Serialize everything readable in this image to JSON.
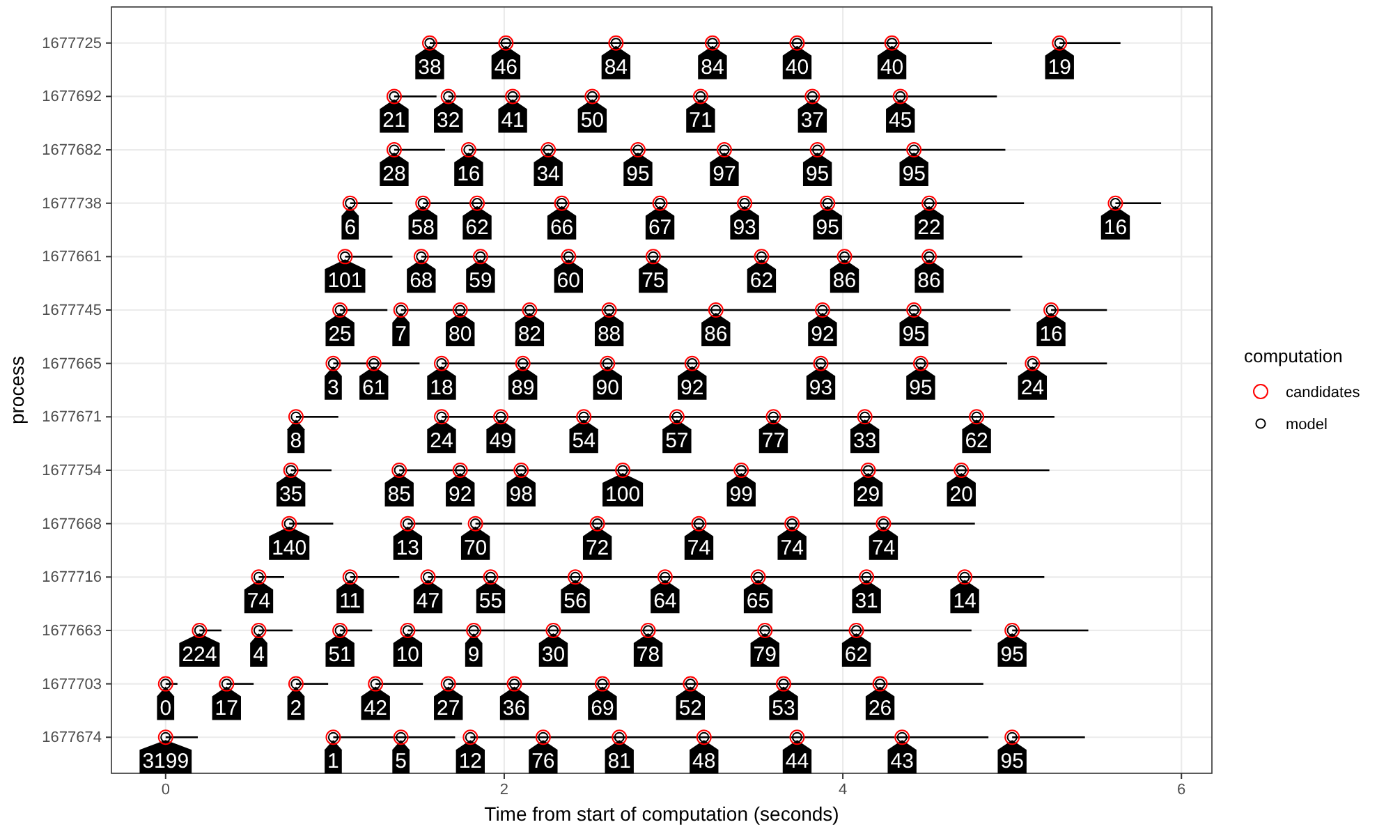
{
  "chart_data": {
    "type": "bar",
    "orientation": "horizontal",
    "xlabel": "Time from start of computation (seconds)",
    "ylabel": "process",
    "legend_title": "computation",
    "legend": "right",
    "grid": true,
    "categories": [
      "1677725",
      "1677692",
      "1677682",
      "1677738",
      "1677661",
      "1677745",
      "1677665",
      "1677671",
      "1677754",
      "1677668",
      "1677716",
      "1677663",
      "1677703",
      "1677674"
    ],
    "xlim": [
      -0.32,
      6.18
    ],
    "xticks": [
      0,
      2,
      4,
      6
    ],
    "series": [
      {
        "color": "#000000",
        "base": [
          1.56,
          1.35,
          1.35,
          1.09,
          1.06,
          1.03,
          0.99,
          0.77,
          0.74,
          0.73,
          0.55,
          0.2,
          0,
          0
        ],
        "values": [
          3.32,
          0.25,
          0.3,
          0.25,
          0.28,
          0.28,
          0.51,
          0.25,
          0.24,
          0.26,
          0.15,
          0.13,
          0.07,
          0.19
        ]
      },
      {
        "color": "#000000",
        "base": [
          5.28,
          1.67,
          1.79,
          1.52,
          1.51,
          1.39,
          1.63,
          1.63,
          1.38,
          1.43,
          1.09,
          0.55,
          0.36,
          0.99
        ],
        "values": [
          0.36,
          3.24,
          3.17,
          3.55,
          3.55,
          3.6,
          3.34,
          3.62,
          3.84,
          0.32,
          0.29,
          0.2,
          0.16,
          0.72
        ]
      },
      {
        "color": "#000000",
        "base": [
          null,
          null,
          null,
          5.61,
          null,
          5.23,
          5.12,
          null,
          null,
          1.83,
          1.55,
          1.03,
          0.77,
          1.8
        ],
        "values": [
          null,
          null,
          null,
          0.27,
          null,
          0.33,
          0.44,
          null,
          null,
          2.95,
          3.64,
          0.19,
          0.19,
          3.06
        ]
      },
      {
        "color": "#000000",
        "base": [
          null,
          null,
          null,
          null,
          null,
          null,
          null,
          null,
          null,
          null,
          null,
          1.43,
          1.24,
          5.0
        ],
        "values": [
          null,
          null,
          null,
          null,
          null,
          null,
          null,
          null,
          null,
          null,
          null,
          3.33,
          0.28,
          0.43
        ]
      },
      {
        "color": "#000000",
        "base": [
          null,
          null,
          null,
          null,
          null,
          null,
          null,
          null,
          null,
          null,
          null,
          5.0,
          1.67,
          null
        ],
        "values": [
          null,
          null,
          null,
          null,
          null,
          null,
          null,
          null,
          null,
          null,
          null,
          0.45,
          3.16,
          null
        ]
      },
      {
        "name": "candidates",
        "type": "scatter",
        "color": "#ff0000",
        "marker": "circle",
        "values": [
          1.56,
          2.01,
          2.66,
          3.23,
          3.73,
          4.29,
          5.28,
          1.35,
          1.67,
          2.05,
          2.52,
          3.16,
          3.82,
          4.34,
          1.35,
          1.79,
          2.26,
          2.79,
          3.3,
          3.85,
          4.42,
          1.09,
          1.52,
          1.84,
          2.34,
          2.92,
          3.42,
          3.91,
          4.51,
          5.61,
          1.06,
          1.51,
          1.86,
          2.38,
          2.88,
          3.52,
          4.01,
          4.51,
          1.03,
          1.39,
          1.74,
          2.15,
          2.62,
          3.25,
          3.88,
          4.42,
          5.23,
          0.99,
          1.23,
          1.63,
          2.11,
          2.61,
          3.11,
          3.87,
          4.46,
          5.12,
          0.77,
          1.63,
          1.98,
          2.47,
          3.02,
          3.59,
          4.13,
          4.79,
          0.74,
          1.38,
          1.74,
          2.1,
          2.7,
          3.4,
          4.15,
          4.7,
          0.73,
          1.43,
          1.83,
          2.55,
          3.15,
          3.7,
          4.24,
          0.55,
          1.09,
          1.55,
          1.92,
          2.42,
          2.95,
          3.5,
          4.14,
          4.72,
          0.2,
          0.55,
          1.03,
          1.43,
          1.82,
          2.29,
          2.85,
          3.54,
          4.08,
          5.0,
          0,
          0.36,
          0.77,
          1.24,
          1.67,
          2.06,
          2.58,
          3.1,
          3.65,
          4.22,
          0,
          0.99,
          1.39,
          1.8,
          2.23,
          2.68,
          3.18,
          3.73,
          4.35,
          5.0
        ],
        "x": [
          "1677725",
          "1677725",
          "1677725",
          "1677725",
          "1677725",
          "1677725",
          "1677725",
          "1677692",
          "1677692",
          "1677692",
          "1677692",
          "1677692",
          "1677692",
          "1677692",
          "1677682",
          "1677682",
          "1677682",
          "1677682",
          "1677682",
          "1677682",
          "1677682",
          "1677738",
          "1677738",
          "1677738",
          "1677738",
          "1677738",
          "1677738",
          "1677738",
          "1677738",
          "1677738",
          "1677661",
          "1677661",
          "1677661",
          "1677661",
          "1677661",
          "1677661",
          "1677661",
          "1677661",
          "1677745",
          "1677745",
          "1677745",
          "1677745",
          "1677745",
          "1677745",
          "1677745",
          "1677745",
          "1677745",
          "1677665",
          "1677665",
          "1677665",
          "1677665",
          "1677665",
          "1677665",
          "1677665",
          "1677665",
          "1677665",
          "1677671",
          "1677671",
          "1677671",
          "1677671",
          "1677671",
          "1677671",
          "1677671",
          "1677671",
          "1677754",
          "1677754",
          "1677754",
          "1677754",
          "1677754",
          "1677754",
          "1677754",
          "1677754",
          "1677668",
          "1677668",
          "1677668",
          "1677668",
          "1677668",
          "1677668",
          "1677668",
          "1677716",
          "1677716",
          "1677716",
          "1677716",
          "1677716",
          "1677716",
          "1677716",
          "1677716",
          "1677716",
          "1677663",
          "1677663",
          "1677663",
          "1677663",
          "1677663",
          "1677663",
          "1677663",
          "1677663",
          "1677663",
          "1677663",
          "1677703",
          "1677703",
          "1677703",
          "1677703",
          "1677703",
          "1677703",
          "1677703",
          "1677703",
          "1677703",
          "1677703",
          "1677674",
          "1677674",
          "1677674",
          "1677674",
          "1677674",
          "1677674",
          "1677674",
          "1677674",
          "1677674",
          "1677674"
        ]
      },
      {
        "name": "model",
        "type": "scatter",
        "color": "#000000",
        "marker": "circle",
        "values": [
          1.56,
          2.01,
          2.66,
          3.23,
          3.73,
          4.29,
          5.28,
          1.35,
          1.67,
          2.05,
          2.52,
          3.16,
          3.82,
          4.34,
          1.35,
          1.79,
          2.26,
          2.79,
          3.3,
          3.85,
          4.42,
          1.09,
          1.52,
          1.84,
          2.34,
          2.92,
          3.42,
          3.91,
          4.51,
          5.61,
          1.06,
          1.51,
          1.86,
          2.38,
          2.88,
          3.52,
          4.01,
          4.51,
          1.03,
          1.39,
          1.74,
          2.15,
          2.62,
          3.25,
          3.88,
          4.42,
          5.23,
          0.99,
          1.23,
          1.63,
          2.11,
          2.61,
          3.11,
          3.87,
          4.46,
          5.12,
          0.77,
          1.63,
          1.98,
          2.47,
          3.02,
          3.59,
          4.13,
          4.79,
          0.74,
          1.38,
          1.74,
          2.1,
          2.7,
          3.4,
          4.15,
          4.7,
          0.73,
          1.43,
          1.83,
          2.55,
          3.15,
          3.7,
          4.24,
          0.55,
          1.09,
          1.55,
          1.92,
          2.42,
          2.95,
          3.5,
          4.14,
          4.72,
          0.2,
          0.55,
          1.03,
          1.43,
          1.82,
          2.29,
          2.85,
          3.54,
          4.08,
          5.0,
          0,
          0.36,
          0.77,
          1.24,
          1.67,
          2.06,
          2.58,
          3.1,
          3.65,
          4.22,
          0,
          0.99,
          1.39,
          1.8,
          2.23,
          2.68,
          3.18,
          3.73,
          4.35,
          5.0
        ],
        "x": [
          "1677725",
          "1677725",
          "1677725",
          "1677725",
          "1677725",
          "1677725",
          "1677725",
          "1677692",
          "1677692",
          "1677692",
          "1677692",
          "1677692",
          "1677692",
          "1677692",
          "1677682",
          "1677682",
          "1677682",
          "1677682",
          "1677682",
          "1677682",
          "1677682",
          "1677738",
          "1677738",
          "1677738",
          "1677738",
          "1677738",
          "1677738",
          "1677738",
          "1677738",
          "1677738",
          "1677661",
          "1677661",
          "1677661",
          "1677661",
          "1677661",
          "1677661",
          "1677661",
          "1677661",
          "1677745",
          "1677745",
          "1677745",
          "1677745",
          "1677745",
          "1677745",
          "1677745",
          "1677745",
          "1677745",
          "1677665",
          "1677665",
          "1677665",
          "1677665",
          "1677665",
          "1677665",
          "1677665",
          "1677665",
          "1677665",
          "1677671",
          "1677671",
          "1677671",
          "1677671",
          "1677671",
          "1677671",
          "1677671",
          "1677671",
          "1677754",
          "1677754",
          "1677754",
          "1677754",
          "1677754",
          "1677754",
          "1677754",
          "1677754",
          "1677668",
          "1677668",
          "1677668",
          "1677668",
          "1677668",
          "1677668",
          "1677668",
          "1677716",
          "1677716",
          "1677716",
          "1677716",
          "1677716",
          "1677716",
          "1677716",
          "1677716",
          "1677716",
          "1677663",
          "1677663",
          "1677663",
          "1677663",
          "1677663",
          "1677663",
          "1677663",
          "1677663",
          "1677663",
          "1677663",
          "1677703",
          "1677703",
          "1677703",
          "1677703",
          "1677703",
          "1677703",
          "1677703",
          "1677703",
          "1677703",
          "1677703",
          "1677674",
          "1677674",
          "1677674",
          "1677674",
          "1677674",
          "1677674",
          "1677674",
          "1677674",
          "1677674",
          "1677674"
        ]
      }
    ],
    "annotations": [
      {
        "text": "38",
        "x": 1.56,
        "y": "1677725"
      },
      {
        "text": "46",
        "x": 2.01,
        "y": "1677725"
      },
      {
        "text": "84",
        "x": 2.66,
        "y": "1677725"
      },
      {
        "text": "84",
        "x": 3.23,
        "y": "1677725"
      },
      {
        "text": "40",
        "x": 3.73,
        "y": "1677725"
      },
      {
        "text": "40",
        "x": 4.29,
        "y": "1677725"
      },
      {
        "text": "19",
        "x": 5.28,
        "y": "1677725"
      },
      {
        "text": "21",
        "x": 1.35,
        "y": "1677692"
      },
      {
        "text": "32",
        "x": 1.67,
        "y": "1677692"
      },
      {
        "text": "41",
        "x": 2.05,
        "y": "1677692"
      },
      {
        "text": "50",
        "x": 2.52,
        "y": "1677692"
      },
      {
        "text": "71",
        "x": 3.16,
        "y": "1677692"
      },
      {
        "text": "37",
        "x": 3.82,
        "y": "1677692"
      },
      {
        "text": "45",
        "x": 4.34,
        "y": "1677692"
      },
      {
        "text": "28",
        "x": 1.35,
        "y": "1677682"
      },
      {
        "text": "16",
        "x": 1.79,
        "y": "1677682"
      },
      {
        "text": "34",
        "x": 2.26,
        "y": "1677682"
      },
      {
        "text": "95",
        "x": 2.79,
        "y": "1677682"
      },
      {
        "text": "97",
        "x": 3.3,
        "y": "1677682"
      },
      {
        "text": "95",
        "x": 3.85,
        "y": "1677682"
      },
      {
        "text": "95",
        "x": 4.42,
        "y": "1677682"
      },
      {
        "text": "6",
        "x": 1.09,
        "y": "1677738"
      },
      {
        "text": "58",
        "x": 1.52,
        "y": "1677738"
      },
      {
        "text": "62",
        "x": 1.84,
        "y": "1677738"
      },
      {
        "text": "66",
        "x": 2.34,
        "y": "1677738"
      },
      {
        "text": "67",
        "x": 2.92,
        "y": "1677738"
      },
      {
        "text": "93",
        "x": 3.42,
        "y": "1677738"
      },
      {
        "text": "95",
        "x": 3.91,
        "y": "1677738"
      },
      {
        "text": "22",
        "x": 4.51,
        "y": "1677738"
      },
      {
        "text": "16",
        "x": 5.61,
        "y": "1677738"
      },
      {
        "text": "101",
        "x": 1.06,
        "y": "1677661"
      },
      {
        "text": "68",
        "x": 1.51,
        "y": "1677661"
      },
      {
        "text": "59",
        "x": 1.86,
        "y": "1677661"
      },
      {
        "text": "60",
        "x": 2.38,
        "y": "1677661"
      },
      {
        "text": "75",
        "x": 2.88,
        "y": "1677661"
      },
      {
        "text": "62",
        "x": 3.52,
        "y": "1677661"
      },
      {
        "text": "86",
        "x": 4.01,
        "y": "1677661"
      },
      {
        "text": "86",
        "x": 4.51,
        "y": "1677661"
      },
      {
        "text": "25",
        "x": 1.03,
        "y": "1677745"
      },
      {
        "text": "7",
        "x": 1.39,
        "y": "1677745"
      },
      {
        "text": "80",
        "x": 1.74,
        "y": "1677745"
      },
      {
        "text": "82",
        "x": 2.15,
        "y": "1677745"
      },
      {
        "text": "88",
        "x": 2.62,
        "y": "1677745"
      },
      {
        "text": "86",
        "x": 3.25,
        "y": "1677745"
      },
      {
        "text": "92",
        "x": 3.88,
        "y": "1677745"
      },
      {
        "text": "95",
        "x": 4.42,
        "y": "1677745"
      },
      {
        "text": "16",
        "x": 5.23,
        "y": "1677745"
      },
      {
        "text": "3",
        "x": 0.99,
        "y": "1677665"
      },
      {
        "text": "61",
        "x": 1.23,
        "y": "1677665"
      },
      {
        "text": "18",
        "x": 1.63,
        "y": "1677665"
      },
      {
        "text": "89",
        "x": 2.11,
        "y": "1677665"
      },
      {
        "text": "90",
        "x": 2.61,
        "y": "1677665"
      },
      {
        "text": "92",
        "x": 3.11,
        "y": "1677665"
      },
      {
        "text": "93",
        "x": 3.87,
        "y": "1677665"
      },
      {
        "text": "95",
        "x": 4.46,
        "y": "1677665"
      },
      {
        "text": "24",
        "x": 5.12,
        "y": "1677665"
      },
      {
        "text": "8",
        "x": 0.77,
        "y": "1677671"
      },
      {
        "text": "24",
        "x": 1.63,
        "y": "1677671"
      },
      {
        "text": "49",
        "x": 1.98,
        "y": "1677671"
      },
      {
        "text": "54",
        "x": 2.47,
        "y": "1677671"
      },
      {
        "text": "57",
        "x": 3.02,
        "y": "1677671"
      },
      {
        "text": "77",
        "x": 3.59,
        "y": "1677671"
      },
      {
        "text": "33",
        "x": 4.13,
        "y": "1677671"
      },
      {
        "text": "62",
        "x": 4.79,
        "y": "1677671"
      },
      {
        "text": "35",
        "x": 0.74,
        "y": "1677754"
      },
      {
        "text": "85",
        "x": 1.38,
        "y": "1677754"
      },
      {
        "text": "92",
        "x": 1.74,
        "y": "1677754"
      },
      {
        "text": "98",
        "x": 2.1,
        "y": "1677754"
      },
      {
        "text": "100",
        "x": 2.7,
        "y": "1677754"
      },
      {
        "text": "99",
        "x": 3.4,
        "y": "1677754"
      },
      {
        "text": "29",
        "x": 4.15,
        "y": "1677754"
      },
      {
        "text": "20",
        "x": 4.7,
        "y": "1677754"
      },
      {
        "text": "140",
        "x": 0.73,
        "y": "1677668"
      },
      {
        "text": "13",
        "x": 1.43,
        "y": "1677668"
      },
      {
        "text": "70",
        "x": 1.83,
        "y": "1677668"
      },
      {
        "text": "72",
        "x": 2.55,
        "y": "1677668"
      },
      {
        "text": "74",
        "x": 3.15,
        "y": "1677668"
      },
      {
        "text": "74",
        "x": 3.7,
        "y": "1677668"
      },
      {
        "text": "74",
        "x": 4.24,
        "y": "1677668"
      },
      {
        "text": "74",
        "x": 0.55,
        "y": "1677716"
      },
      {
        "text": "11",
        "x": 1.09,
        "y": "1677716"
      },
      {
        "text": "47",
        "x": 1.55,
        "y": "1677716"
      },
      {
        "text": "55",
        "x": 1.92,
        "y": "1677716"
      },
      {
        "text": "56",
        "x": 2.42,
        "y": "1677716"
      },
      {
        "text": "64",
        "x": 2.95,
        "y": "1677716"
      },
      {
        "text": "65",
        "x": 3.5,
        "y": "1677716"
      },
      {
        "text": "31",
        "x": 4.14,
        "y": "1677716"
      },
      {
        "text": "14",
        "x": 4.72,
        "y": "1677716"
      },
      {
        "text": "224",
        "x": 0.2,
        "y": "1677663"
      },
      {
        "text": "4",
        "x": 0.55,
        "y": "1677663"
      },
      {
        "text": "51",
        "x": 1.03,
        "y": "1677663"
      },
      {
        "text": "10",
        "x": 1.43,
        "y": "1677663"
      },
      {
        "text": "9",
        "x": 1.82,
        "y": "1677663"
      },
      {
        "text": "30",
        "x": 2.29,
        "y": "1677663"
      },
      {
        "text": "78",
        "x": 2.85,
        "y": "1677663"
      },
      {
        "text": "79",
        "x": 3.54,
        "y": "1677663"
      },
      {
        "text": "62",
        "x": 4.08,
        "y": "1677663"
      },
      {
        "text": "95",
        "x": 5.0,
        "y": "1677663"
      },
      {
        "text": "0",
        "x": 0,
        "y": "1677703"
      },
      {
        "text": "17",
        "x": 0.36,
        "y": "1677703"
      },
      {
        "text": "2",
        "x": 0.77,
        "y": "1677703"
      },
      {
        "text": "42",
        "x": 1.24,
        "y": "1677703"
      },
      {
        "text": "27",
        "x": 1.67,
        "y": "1677703"
      },
      {
        "text": "36",
        "x": 2.06,
        "y": "1677703"
      },
      {
        "text": "69",
        "x": 2.58,
        "y": "1677703"
      },
      {
        "text": "52",
        "x": 3.1,
        "y": "1677703"
      },
      {
        "text": "53",
        "x": 3.65,
        "y": "1677703"
      },
      {
        "text": "26",
        "x": 4.22,
        "y": "1677703"
      },
      {
        "text": "3199",
        "x": 0,
        "y": "1677674"
      },
      {
        "text": "1",
        "x": 0.99,
        "y": "1677674"
      },
      {
        "text": "5",
        "x": 1.39,
        "y": "1677674"
      },
      {
        "text": "12",
        "x": 1.8,
        "y": "1677674"
      },
      {
        "text": "76",
        "x": 2.23,
        "y": "1677674"
      },
      {
        "text": "81",
        "x": 2.68,
        "y": "1677674"
      },
      {
        "text": "48",
        "x": 3.18,
        "y": "1677674"
      },
      {
        "text": "44",
        "x": 3.73,
        "y": "1677674"
      },
      {
        "text": "43",
        "x": 4.35,
        "y": "1677674"
      },
      {
        "text": "95",
        "x": 5.0,
        "y": "1677674"
      }
    ]
  }
}
